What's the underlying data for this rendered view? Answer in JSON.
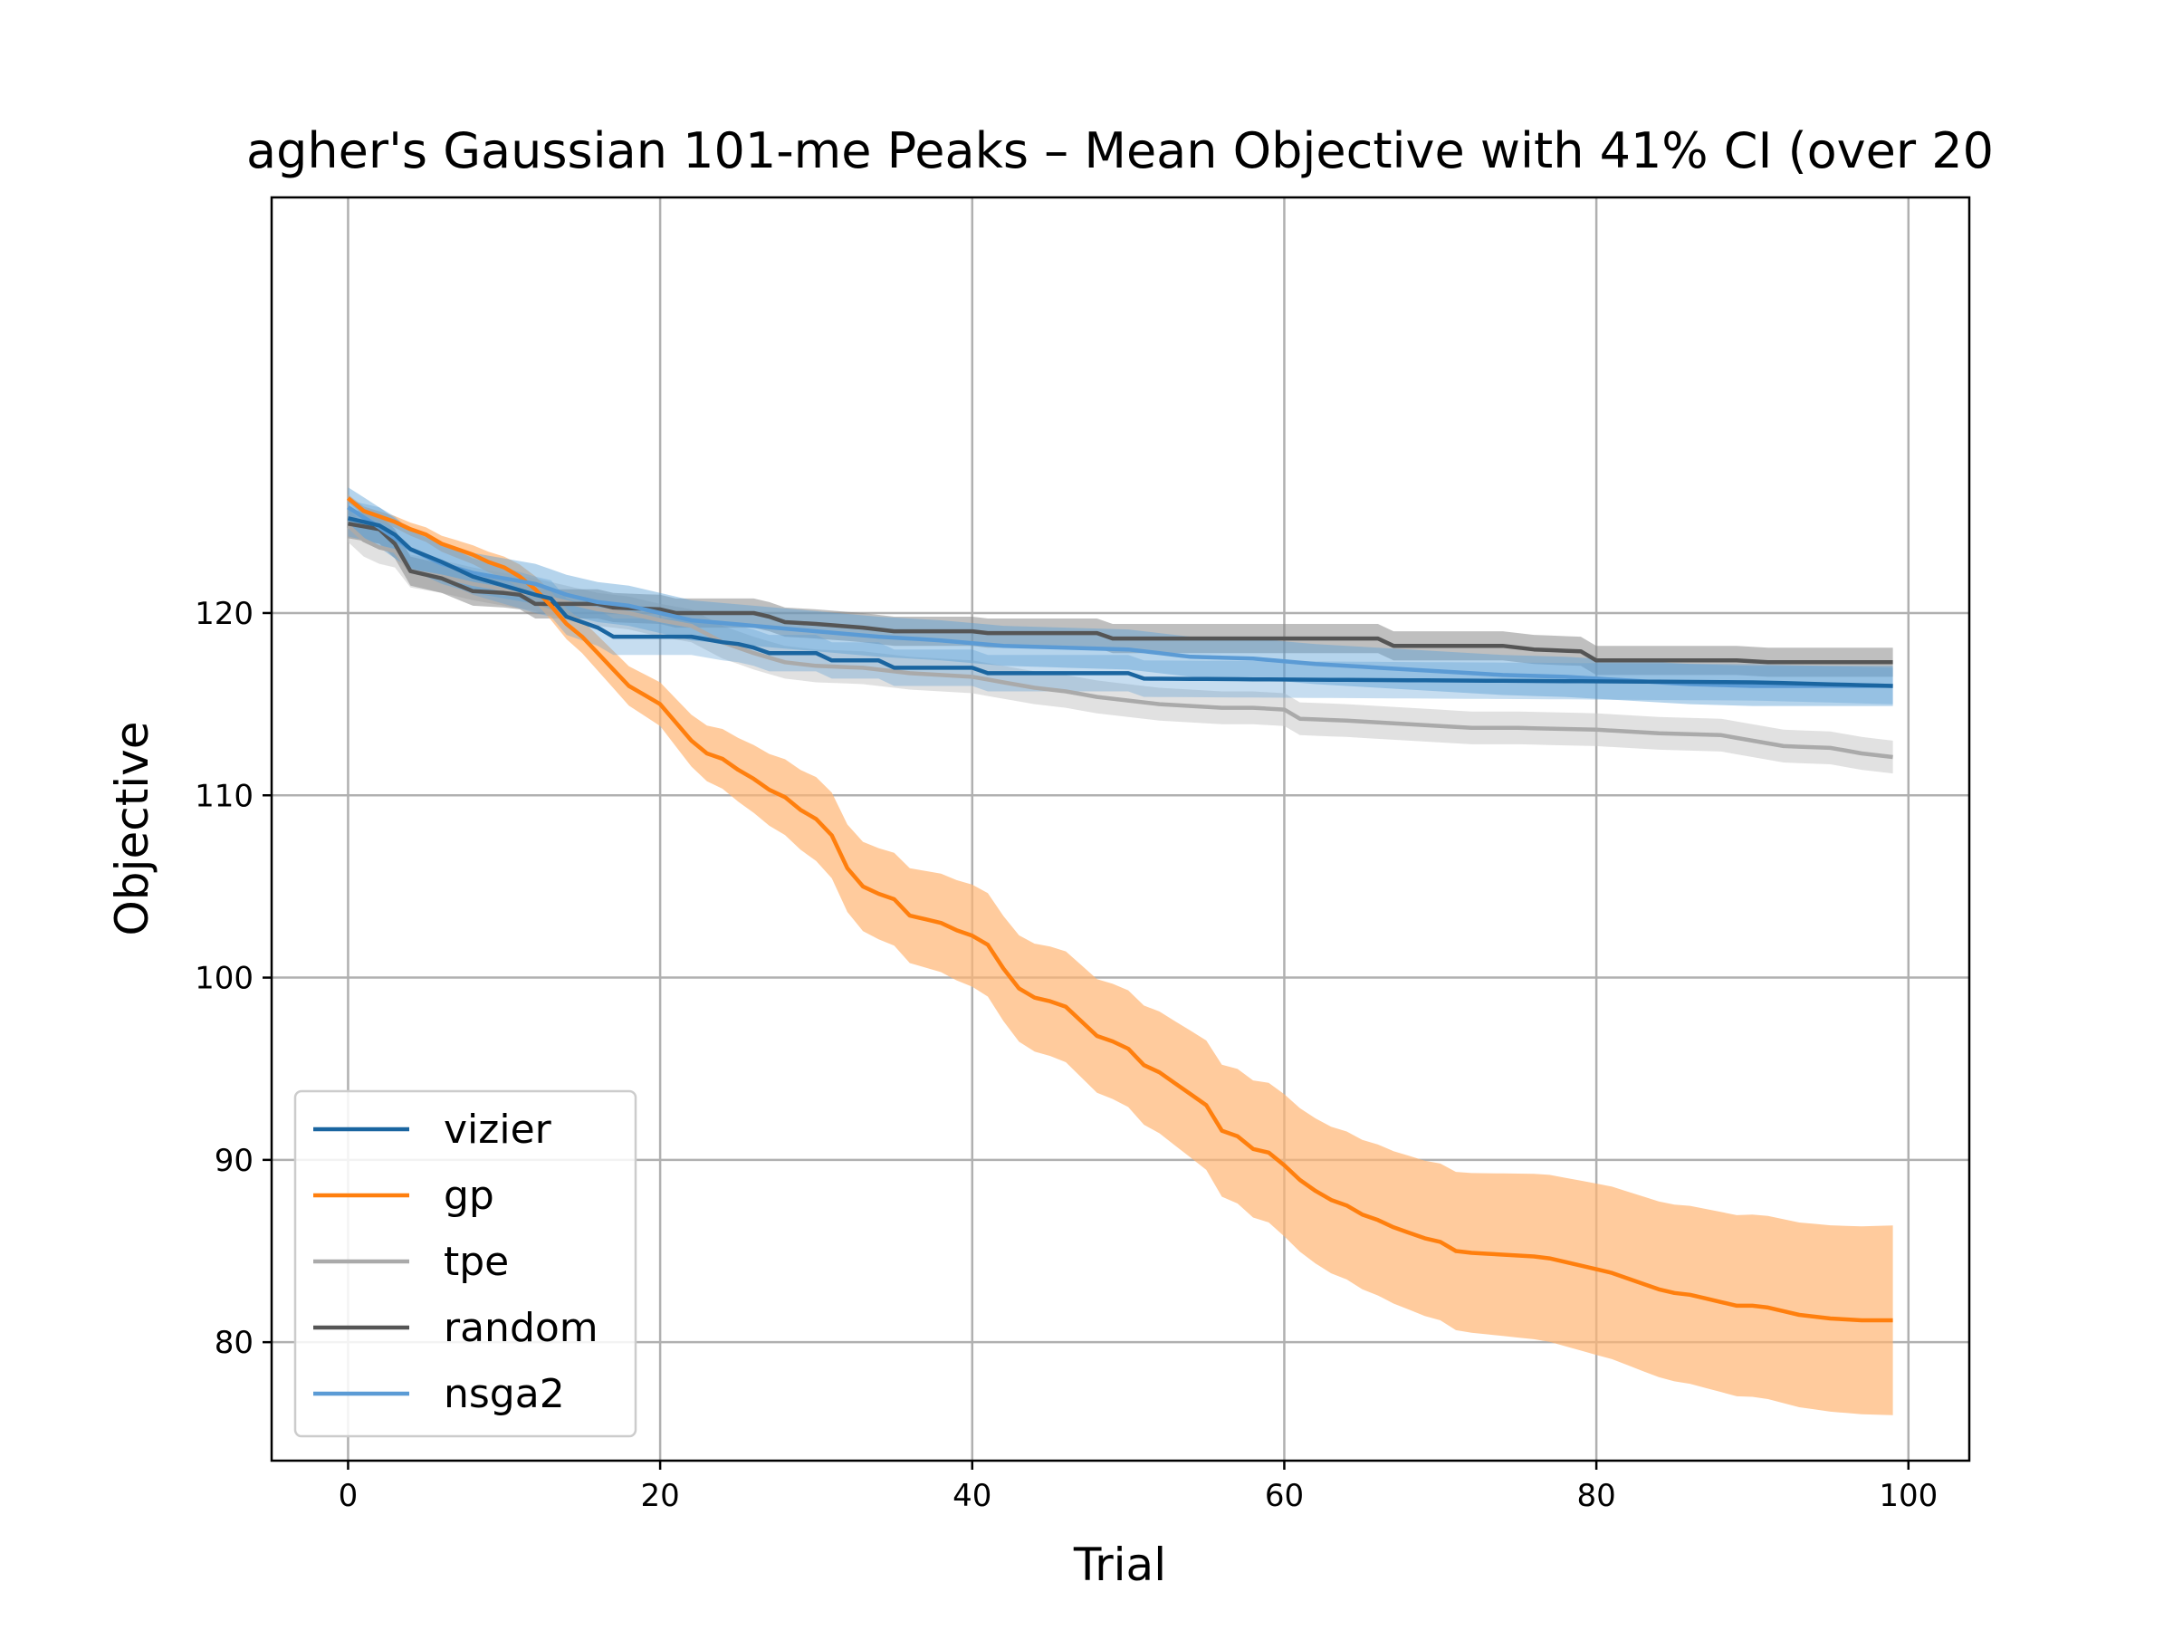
{
  "chart_data": {
    "type": "line",
    "title": "agher's Gaussian 101-me Peaks – Mean Objective with 41% CI (over 20",
    "xlabel": "Trial",
    "ylabel": "Objective",
    "xlim": [
      -4.9,
      103.9
    ],
    "ylim": [
      73.5,
      142.8
    ],
    "xticks": [
      0,
      20,
      40,
      60,
      80,
      100
    ],
    "yticks": [
      80,
      90,
      100,
      110,
      120
    ],
    "grid": true,
    "legend_position": "lower-left",
    "series": [
      {
        "name": "vizier",
        "color": "#1a65a0",
        "band_color": "#5b9fd4",
        "band_opacity": 0.35,
        "keypoints": [
          [
            0,
            125.2
          ],
          [
            2,
            124.8
          ],
          [
            3,
            124.3
          ],
          [
            4,
            123.5
          ],
          [
            6,
            122.8
          ],
          [
            8,
            122.0
          ],
          [
            10,
            121.5
          ],
          [
            12,
            121.0
          ],
          [
            13,
            120.8
          ],
          [
            14,
            119.8
          ],
          [
            16,
            119.2
          ],
          [
            17,
            118.7
          ],
          [
            22,
            118.7
          ],
          [
            24,
            118.4
          ],
          [
            25,
            118.3
          ],
          [
            26,
            118.1
          ],
          [
            27,
            117.8
          ],
          [
            30,
            117.8
          ],
          [
            31,
            117.4
          ],
          [
            34,
            117.4
          ],
          [
            35,
            117.0
          ],
          [
            40,
            117.0
          ],
          [
            41,
            116.7
          ],
          [
            50,
            116.7
          ],
          [
            51,
            116.4
          ],
          [
            90,
            116.2
          ],
          [
            99,
            116.0
          ]
        ],
        "band_halfwidth": 1.0
      },
      {
        "name": "gp",
        "color": "#ff7f0e",
        "band_color": "#ffb574",
        "band_opacity": 0.7,
        "keypoints": [
          [
            0,
            126.3
          ],
          [
            1,
            125.6
          ],
          [
            2,
            125.3
          ],
          [
            3,
            125.0
          ],
          [
            4,
            124.6
          ],
          [
            5,
            124.3
          ],
          [
            6,
            123.8
          ],
          [
            7,
            123.5
          ],
          [
            8,
            123.2
          ],
          [
            9,
            122.8
          ],
          [
            10,
            122.5
          ],
          [
            11,
            122.0
          ],
          [
            12,
            121.3
          ],
          [
            13,
            120.4
          ],
          [
            14,
            119.4
          ],
          [
            15,
            118.7
          ],
          [
            16,
            117.8
          ],
          [
            17,
            116.9
          ],
          [
            18,
            116.0
          ],
          [
            19,
            115.5
          ],
          [
            20,
            115.0
          ],
          [
            21,
            114.0
          ],
          [
            22,
            113.0
          ],
          [
            23,
            112.3
          ],
          [
            24,
            112.0
          ],
          [
            25,
            111.4
          ],
          [
            26,
            110.9
          ],
          [
            27,
            110.3
          ],
          [
            28,
            109.9
          ],
          [
            29,
            109.2
          ],
          [
            30,
            108.7
          ],
          [
            31,
            107.8
          ],
          [
            32,
            106.0
          ],
          [
            33,
            105.0
          ],
          [
            34,
            104.6
          ],
          [
            35,
            104.3
          ],
          [
            36,
            103.4
          ],
          [
            37,
            103.2
          ],
          [
            38,
            103.0
          ],
          [
            39,
            102.6
          ],
          [
            40,
            102.3
          ],
          [
            41,
            101.8
          ],
          [
            42,
            100.5
          ],
          [
            43,
            99.4
          ],
          [
            44,
            98.9
          ],
          [
            45,
            98.7
          ],
          [
            46,
            98.4
          ],
          [
            47,
            97.6
          ],
          [
            48,
            96.8
          ],
          [
            49,
            96.5
          ],
          [
            50,
            96.1
          ],
          [
            51,
            95.2
          ],
          [
            52,
            94.8
          ],
          [
            53,
            94.2
          ],
          [
            54,
            93.6
          ],
          [
            55,
            93.0
          ],
          [
            56,
            91.6
          ],
          [
            57,
            91.3
          ],
          [
            58,
            90.6
          ],
          [
            59,
            90.4
          ],
          [
            60,
            89.7
          ],
          [
            61,
            88.9
          ],
          [
            62,
            88.3
          ],
          [
            63,
            87.8
          ],
          [
            64,
            87.5
          ],
          [
            65,
            87.0
          ],
          [
            66,
            86.7
          ],
          [
            67,
            86.3
          ],
          [
            68,
            86.0
          ],
          [
            69,
            85.7
          ],
          [
            70,
            85.5
          ],
          [
            71,
            85.0
          ],
          [
            72,
            84.9
          ],
          [
            74,
            84.8
          ],
          [
            76,
            84.7
          ],
          [
            77,
            84.6
          ],
          [
            78,
            84.4
          ],
          [
            79,
            84.2
          ],
          [
            80,
            84.0
          ],
          [
            81,
            83.8
          ],
          [
            82,
            83.5
          ],
          [
            83,
            83.2
          ],
          [
            84,
            82.9
          ],
          [
            85,
            82.7
          ],
          [
            86,
            82.6
          ],
          [
            87,
            82.4
          ],
          [
            88,
            82.2
          ],
          [
            89,
            82.0
          ],
          [
            90,
            82.0
          ],
          [
            91,
            81.9
          ],
          [
            92,
            81.7
          ],
          [
            93,
            81.5
          ],
          [
            94,
            81.4
          ],
          [
            95,
            81.3
          ],
          [
            96,
            81.25
          ],
          [
            97,
            81.2
          ],
          [
            98,
            81.2
          ],
          [
            99,
            81.2
          ]
        ],
        "band_halfwidth_series": [
          [
            0,
            0.2
          ],
          [
            10,
            0.6
          ],
          [
            20,
            1.2
          ],
          [
            30,
            2.3
          ],
          [
            40,
            2.8
          ],
          [
            50,
            3.2
          ],
          [
            60,
            3.9
          ],
          [
            70,
            4.3
          ],
          [
            80,
            4.7
          ],
          [
            90,
            5.0
          ],
          [
            99,
            5.2
          ]
        ]
      },
      {
        "name": "tpe",
        "color": "#aaaaaa",
        "band_color": "#c8c8c8",
        "band_opacity": 0.55,
        "keypoints": [
          [
            0,
            124.8
          ],
          [
            1,
            124.0
          ],
          [
            2,
            123.6
          ],
          [
            3,
            123.4
          ],
          [
            4,
            122.3
          ],
          [
            6,
            122.0
          ],
          [
            8,
            121.6
          ],
          [
            10,
            121.3
          ],
          [
            12,
            121.0
          ],
          [
            14,
            120.6
          ],
          [
            16,
            120.2
          ],
          [
            18,
            120.0
          ],
          [
            20,
            119.6
          ],
          [
            22,
            119.3
          ],
          [
            24,
            118.4
          ],
          [
            26,
            117.8
          ],
          [
            28,
            117.3
          ],
          [
            30,
            117.1
          ],
          [
            33,
            117.0
          ],
          [
            36,
            116.7
          ],
          [
            38,
            116.6
          ],
          [
            40,
            116.5
          ],
          [
            42,
            116.2
          ],
          [
            44,
            115.9
          ],
          [
            46,
            115.7
          ],
          [
            48,
            115.4
          ],
          [
            50,
            115.2
          ],
          [
            52,
            115.0
          ],
          [
            54,
            114.9
          ],
          [
            56,
            114.8
          ],
          [
            58,
            114.8
          ],
          [
            60,
            114.7
          ],
          [
            61,
            114.2
          ],
          [
            64,
            114.1
          ],
          [
            66,
            114.0
          ],
          [
            68,
            113.9
          ],
          [
            70,
            113.8
          ],
          [
            72,
            113.7
          ],
          [
            75,
            113.7
          ],
          [
            80,
            113.6
          ],
          [
            84,
            113.4
          ],
          [
            88,
            113.3
          ],
          [
            90,
            113.0
          ],
          [
            92,
            112.7
          ],
          [
            95,
            112.6
          ],
          [
            97,
            112.3
          ],
          [
            99,
            112.1
          ]
        ],
        "band_halfwidth": 0.9
      },
      {
        "name": "random",
        "color": "#555555",
        "band_color": "#8a8a8a",
        "band_opacity": 0.55,
        "keypoints": [
          [
            0,
            124.9
          ],
          [
            2,
            124.6
          ],
          [
            3,
            123.8
          ],
          [
            4,
            122.3
          ],
          [
            6,
            121.9
          ],
          [
            8,
            121.2
          ],
          [
            10,
            121.1
          ],
          [
            11,
            121.0
          ],
          [
            12,
            120.5
          ],
          [
            16,
            120.5
          ],
          [
            17,
            120.3
          ],
          [
            20,
            120.2
          ],
          [
            21,
            120.0
          ],
          [
            26,
            120.0
          ],
          [
            27,
            119.8
          ],
          [
            28,
            119.5
          ],
          [
            30,
            119.4
          ],
          [
            33,
            119.2
          ],
          [
            35,
            119.0
          ],
          [
            40,
            119.0
          ],
          [
            41,
            118.9
          ],
          [
            48,
            118.9
          ],
          [
            49,
            118.6
          ],
          [
            66,
            118.6
          ],
          [
            67,
            118.2
          ],
          [
            74,
            118.2
          ],
          [
            76,
            118.0
          ],
          [
            79,
            117.9
          ],
          [
            80,
            117.4
          ],
          [
            88,
            117.4
          ],
          [
            89,
            117.4
          ],
          [
            91,
            117.3
          ],
          [
            99,
            117.3
          ]
        ],
        "band_halfwidth": 0.8
      },
      {
        "name": "nsga2",
        "color": "#5b9bd5",
        "band_color": "#5b9fd4",
        "band_opacity": 0.45,
        "keypoints": [
          [
            0,
            125.8
          ],
          [
            2,
            124.7
          ],
          [
            4,
            123.5
          ],
          [
            6,
            122.7
          ],
          [
            8,
            122.2
          ],
          [
            10,
            121.9
          ],
          [
            12,
            121.6
          ],
          [
            14,
            121.0
          ],
          [
            16,
            120.6
          ],
          [
            18,
            120.4
          ],
          [
            20,
            120.0
          ],
          [
            22,
            119.6
          ],
          [
            26,
            119.3
          ],
          [
            30,
            119.0
          ],
          [
            34,
            118.7
          ],
          [
            38,
            118.5
          ],
          [
            42,
            118.2
          ],
          [
            46,
            118.1
          ],
          [
            50,
            118.0
          ],
          [
            54,
            117.6
          ],
          [
            58,
            117.5
          ],
          [
            62,
            117.2
          ],
          [
            66,
            117.0
          ],
          [
            70,
            116.8
          ],
          [
            74,
            116.6
          ],
          [
            78,
            116.5
          ],
          [
            82,
            116.3
          ],
          [
            86,
            116.1
          ],
          [
            90,
            116.0
          ],
          [
            99,
            116.0
          ]
        ],
        "band_halfwidth": 1.1
      }
    ]
  }
}
